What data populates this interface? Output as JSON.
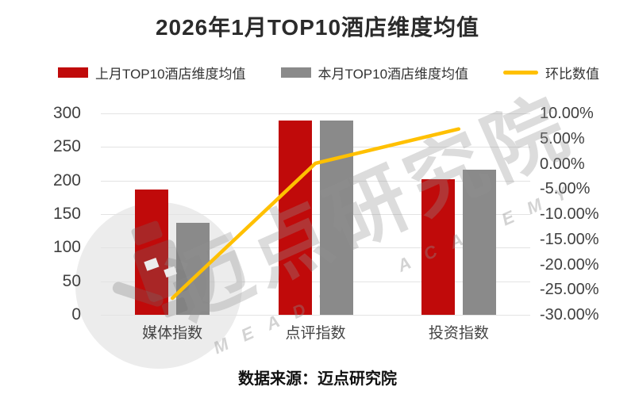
{
  "title": "2026年1月TOP10酒店维度均值",
  "source": "数据来源：迈点研究院",
  "watermark": {
    "main": "迈点研究院",
    "sub": "MEADIN ACADEMY"
  },
  "colors": {
    "last_month_bar": "#c00a0a",
    "this_month_bar": "#8a8a8a",
    "mom_line": "#ffc000",
    "grid": "#e3e3e3",
    "axis_text": "#404040",
    "title_text": "#2b2b2b"
  },
  "legend": {
    "items": [
      {
        "label": "上月TOP10酒店维度均值",
        "swatch": "bar",
        "color": "#c00a0a"
      },
      {
        "label": "本月TOP10酒店维度均值",
        "swatch": "bar",
        "color": "#8a8a8a"
      },
      {
        "label": "环比数值",
        "swatch": "line",
        "color": "#ffc000"
      }
    ]
  },
  "chart_data": {
    "type": "bar",
    "title": "2026年1月TOP10酒店维度均值",
    "categories": [
      "媒体指数",
      "点评指数",
      "投资指数"
    ],
    "series": [
      {
        "name": "上月TOP10酒店维度均值",
        "type": "bar",
        "axis": "left",
        "color": "#c00a0a",
        "values": [
          187,
          290,
          202
        ]
      },
      {
        "name": "本月TOP10酒店维度均值",
        "type": "bar",
        "axis": "left",
        "color": "#8a8a8a",
        "values": [
          137,
          290,
          216
        ]
      },
      {
        "name": "环比数值",
        "type": "line",
        "axis": "right",
        "color": "#ffc000",
        "values": [
          -26.7,
          0.1,
          6.9
        ]
      }
    ],
    "left_axis": {
      "min": 0,
      "max": 300,
      "ticks": [
        "300",
        "250",
        "200",
        "150",
        "100",
        "50",
        "0"
      ]
    },
    "right_axis": {
      "min": -30,
      "max": 10,
      "ticks": [
        "10.00%",
        "5.00%",
        "0.00%",
        "-5.00%",
        "-10.00%",
        "-15.00%",
        "-20.00%",
        "-25.00%",
        "-30.00%"
      ]
    },
    "grid": true,
    "legend_position": "top"
  }
}
